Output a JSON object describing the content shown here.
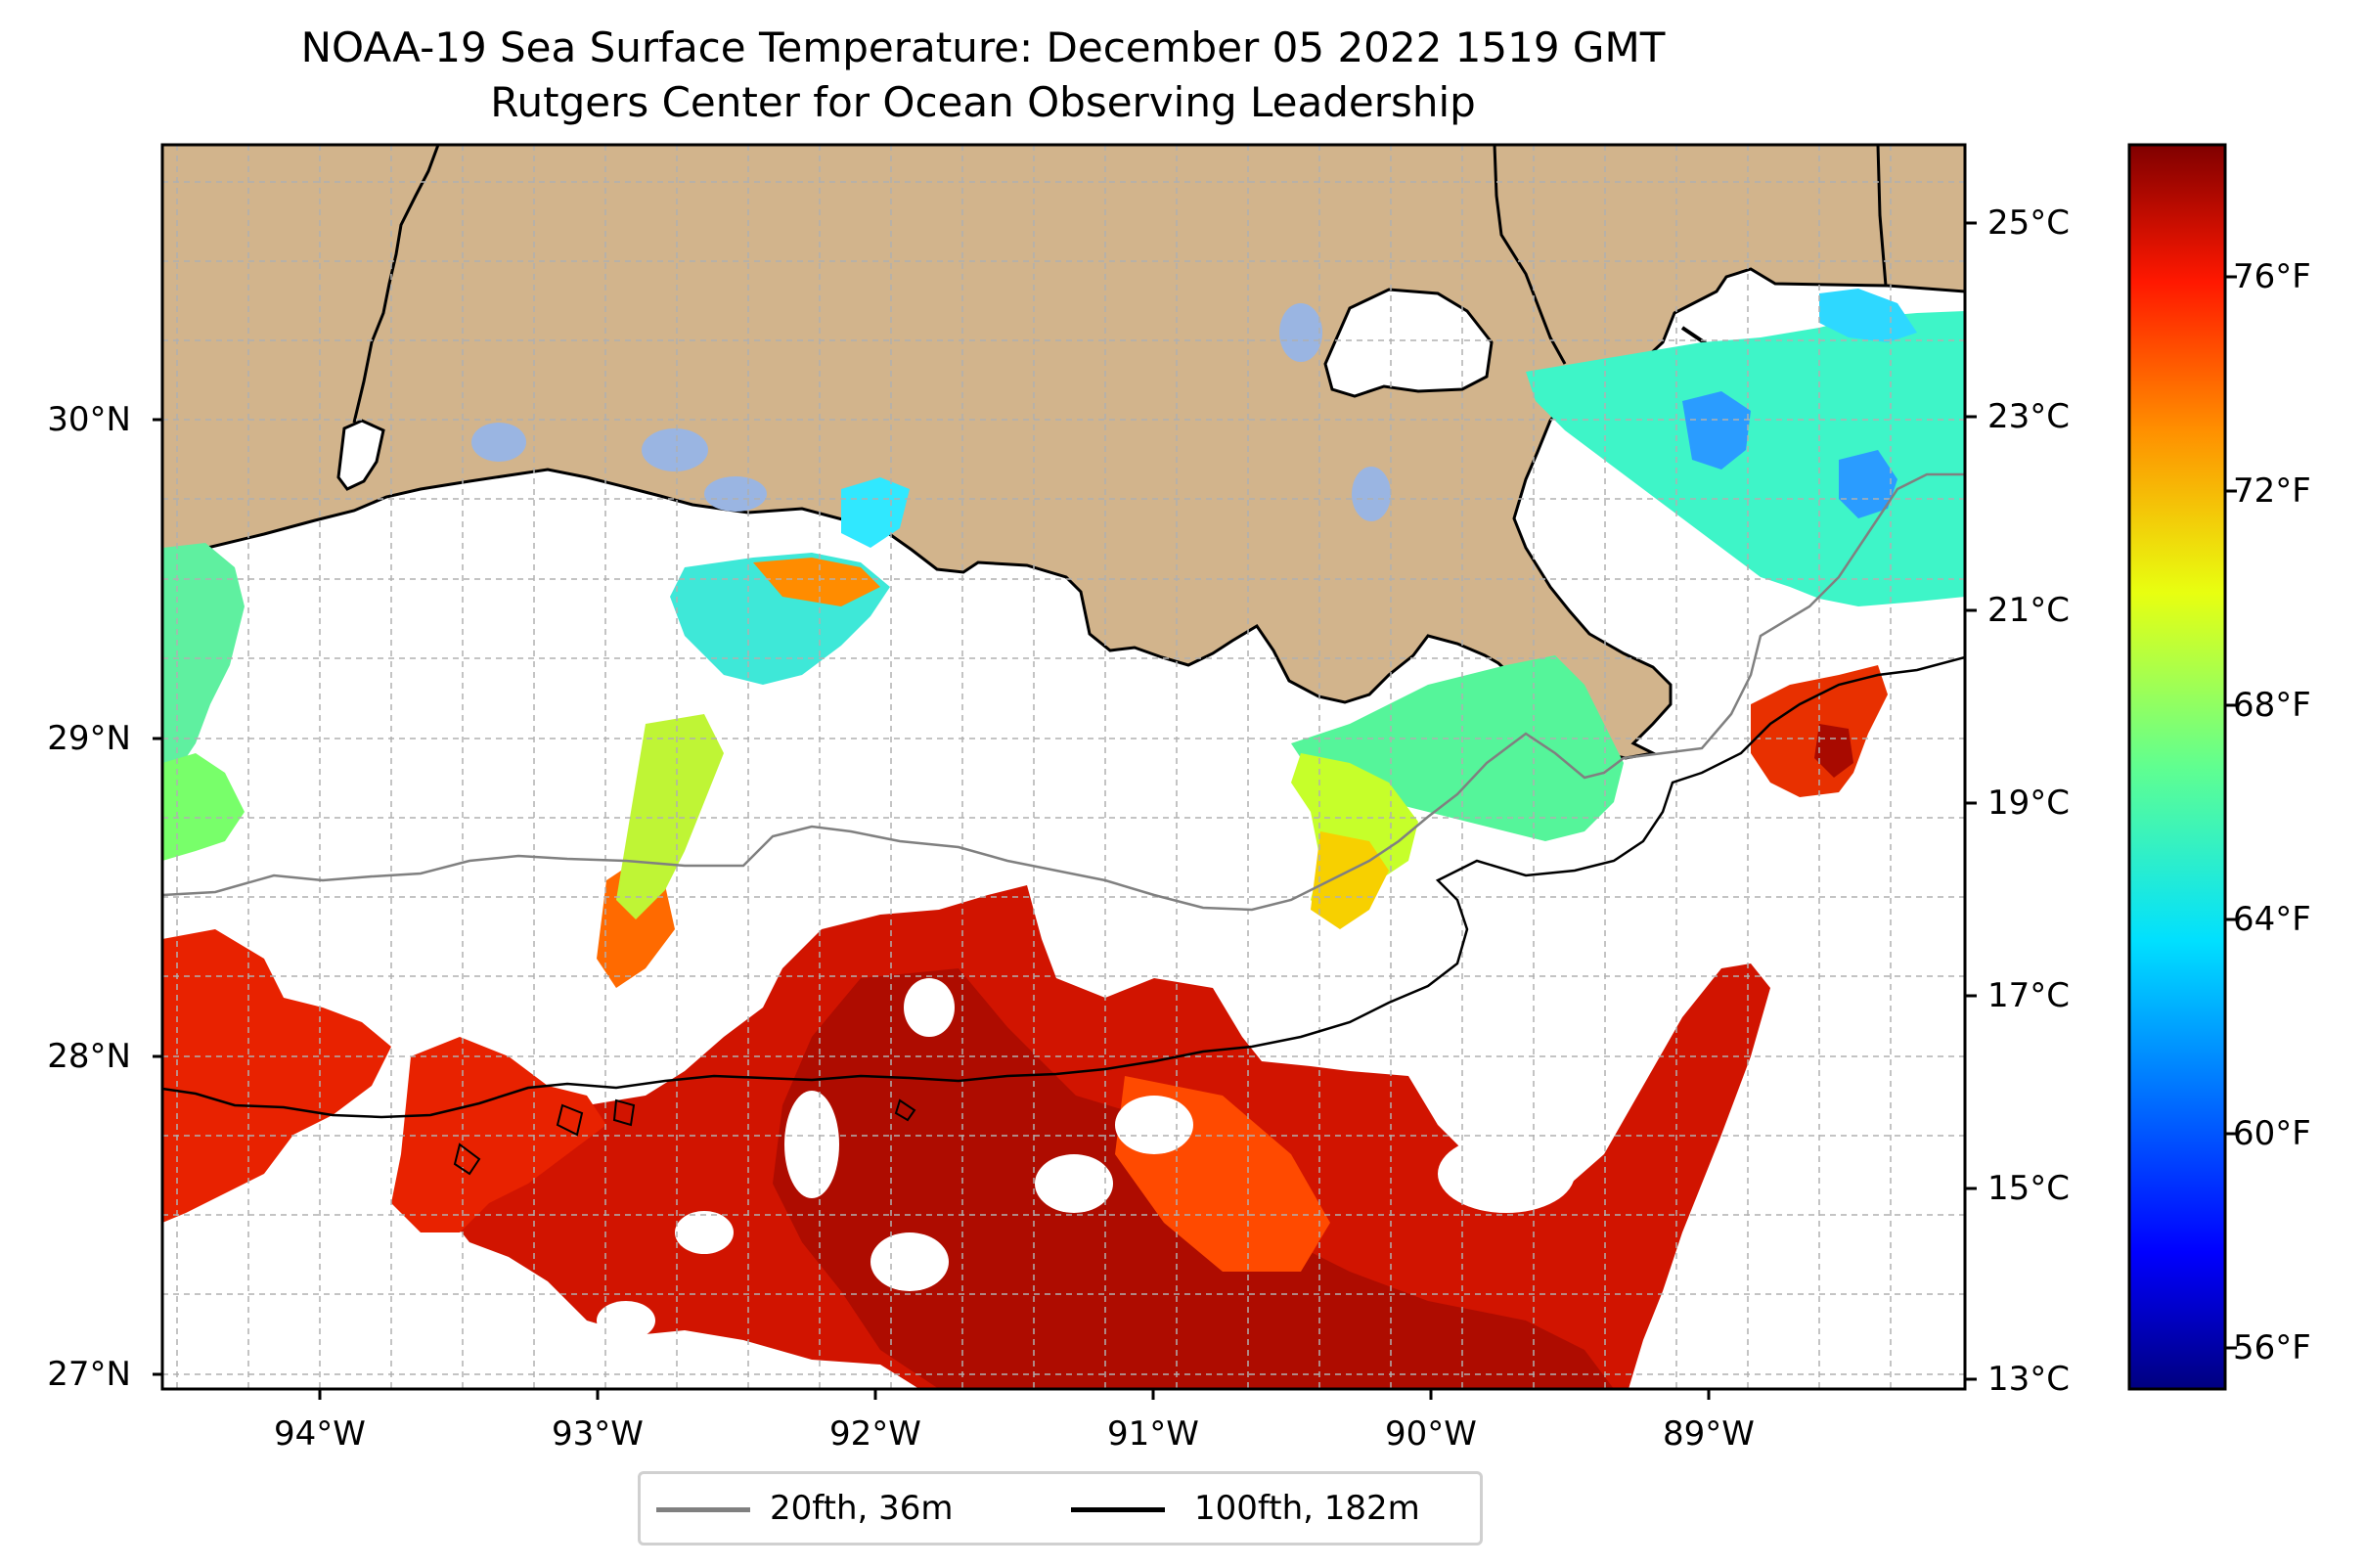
{
  "title": "NOAA-19 Sea Surface Temperature: December 05 2022 1519 GMT",
  "subtitle": "Rutgers Center for Ocean Observing Leadership",
  "map": {
    "lat_range": [
      26.93,
      30.85
    ],
    "lon_range": [
      -94.55,
      -88.25
    ],
    "lat_ticks": [
      "30°N",
      "29°N",
      "28°N",
      "27°N"
    ],
    "lon_ticks": [
      "94°W",
      "93°W",
      "92°W",
      "91°W",
      "90°W",
      "89°W"
    ],
    "land_color": "#d2b48c",
    "lake_color": "#9ab5e2",
    "grid": "dashed",
    "colormap": "jet"
  },
  "colorbar": {
    "celsius_ticks": [
      "25°C",
      "23°C",
      "21°C",
      "19°C",
      "17°C",
      "15°C",
      "13°C"
    ],
    "fahrenheit_ticks": [
      "76°F",
      "72°F",
      "68°F",
      "64°F",
      "60°F",
      "56°F"
    ],
    "range_c": [
      13,
      25.8
    ]
  },
  "legend": {
    "items": [
      {
        "label": "20fth, 36m",
        "color": "#808080"
      },
      {
        "label": "100fth, 182m",
        "color": "#000000"
      }
    ]
  }
}
